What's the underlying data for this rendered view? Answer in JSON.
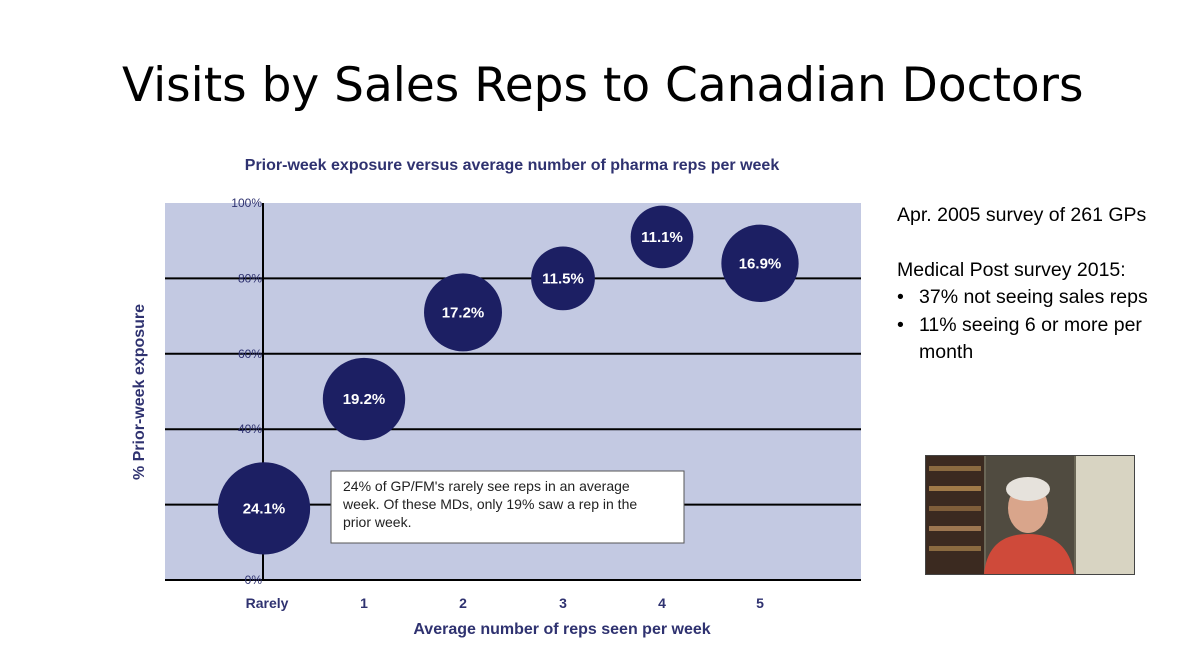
{
  "slide": {
    "title": "Visits by Sales Reps to Canadian Doctors"
  },
  "notes": {
    "survey_line": "Apr. 2005 survey of 261 GPs",
    "medical_post_heading": "Medical Post survey 2015:",
    "bullets": [
      "37% not seeing sales reps",
      "11% seeing 6 or more per month"
    ]
  },
  "chart_data": {
    "type": "scatter",
    "title": "Prior-week exposure versus average number of pharma reps per week",
    "xlabel": "Average number of reps seen per week",
    "ylabel": "% Prior-week exposure",
    "categories": [
      "Rarely",
      "1",
      "2",
      "3",
      "4",
      "5"
    ],
    "y_ticks": [
      "100%",
      "80%",
      "60%",
      "40%",
      "20%",
      "0%"
    ],
    "ylim": [
      0,
      100
    ],
    "grid": true,
    "series": [
      {
        "x": [
          "Rarely",
          "1",
          "2",
          "3",
          "4",
          "5"
        ],
        "y": [
          19,
          48,
          71,
          80,
          91,
          84
        ],
        "bubble_labels": [
          "24.1%",
          "19.2%",
          "17.2%",
          "11.5%",
          "11.1%",
          "16.9%"
        ],
        "bubble_size_values": [
          24.1,
          19.2,
          17.2,
          11.5,
          11.1,
          16.9
        ]
      }
    ],
    "annotation": "24% of GP/FM's rarely see reps in an average week. Of these MDs, only 19% saw a rep in the prior week.",
    "colors": {
      "plot_background": "#c3c9e2",
      "bubble": "#1c1f63",
      "text": "#2f3270"
    }
  }
}
